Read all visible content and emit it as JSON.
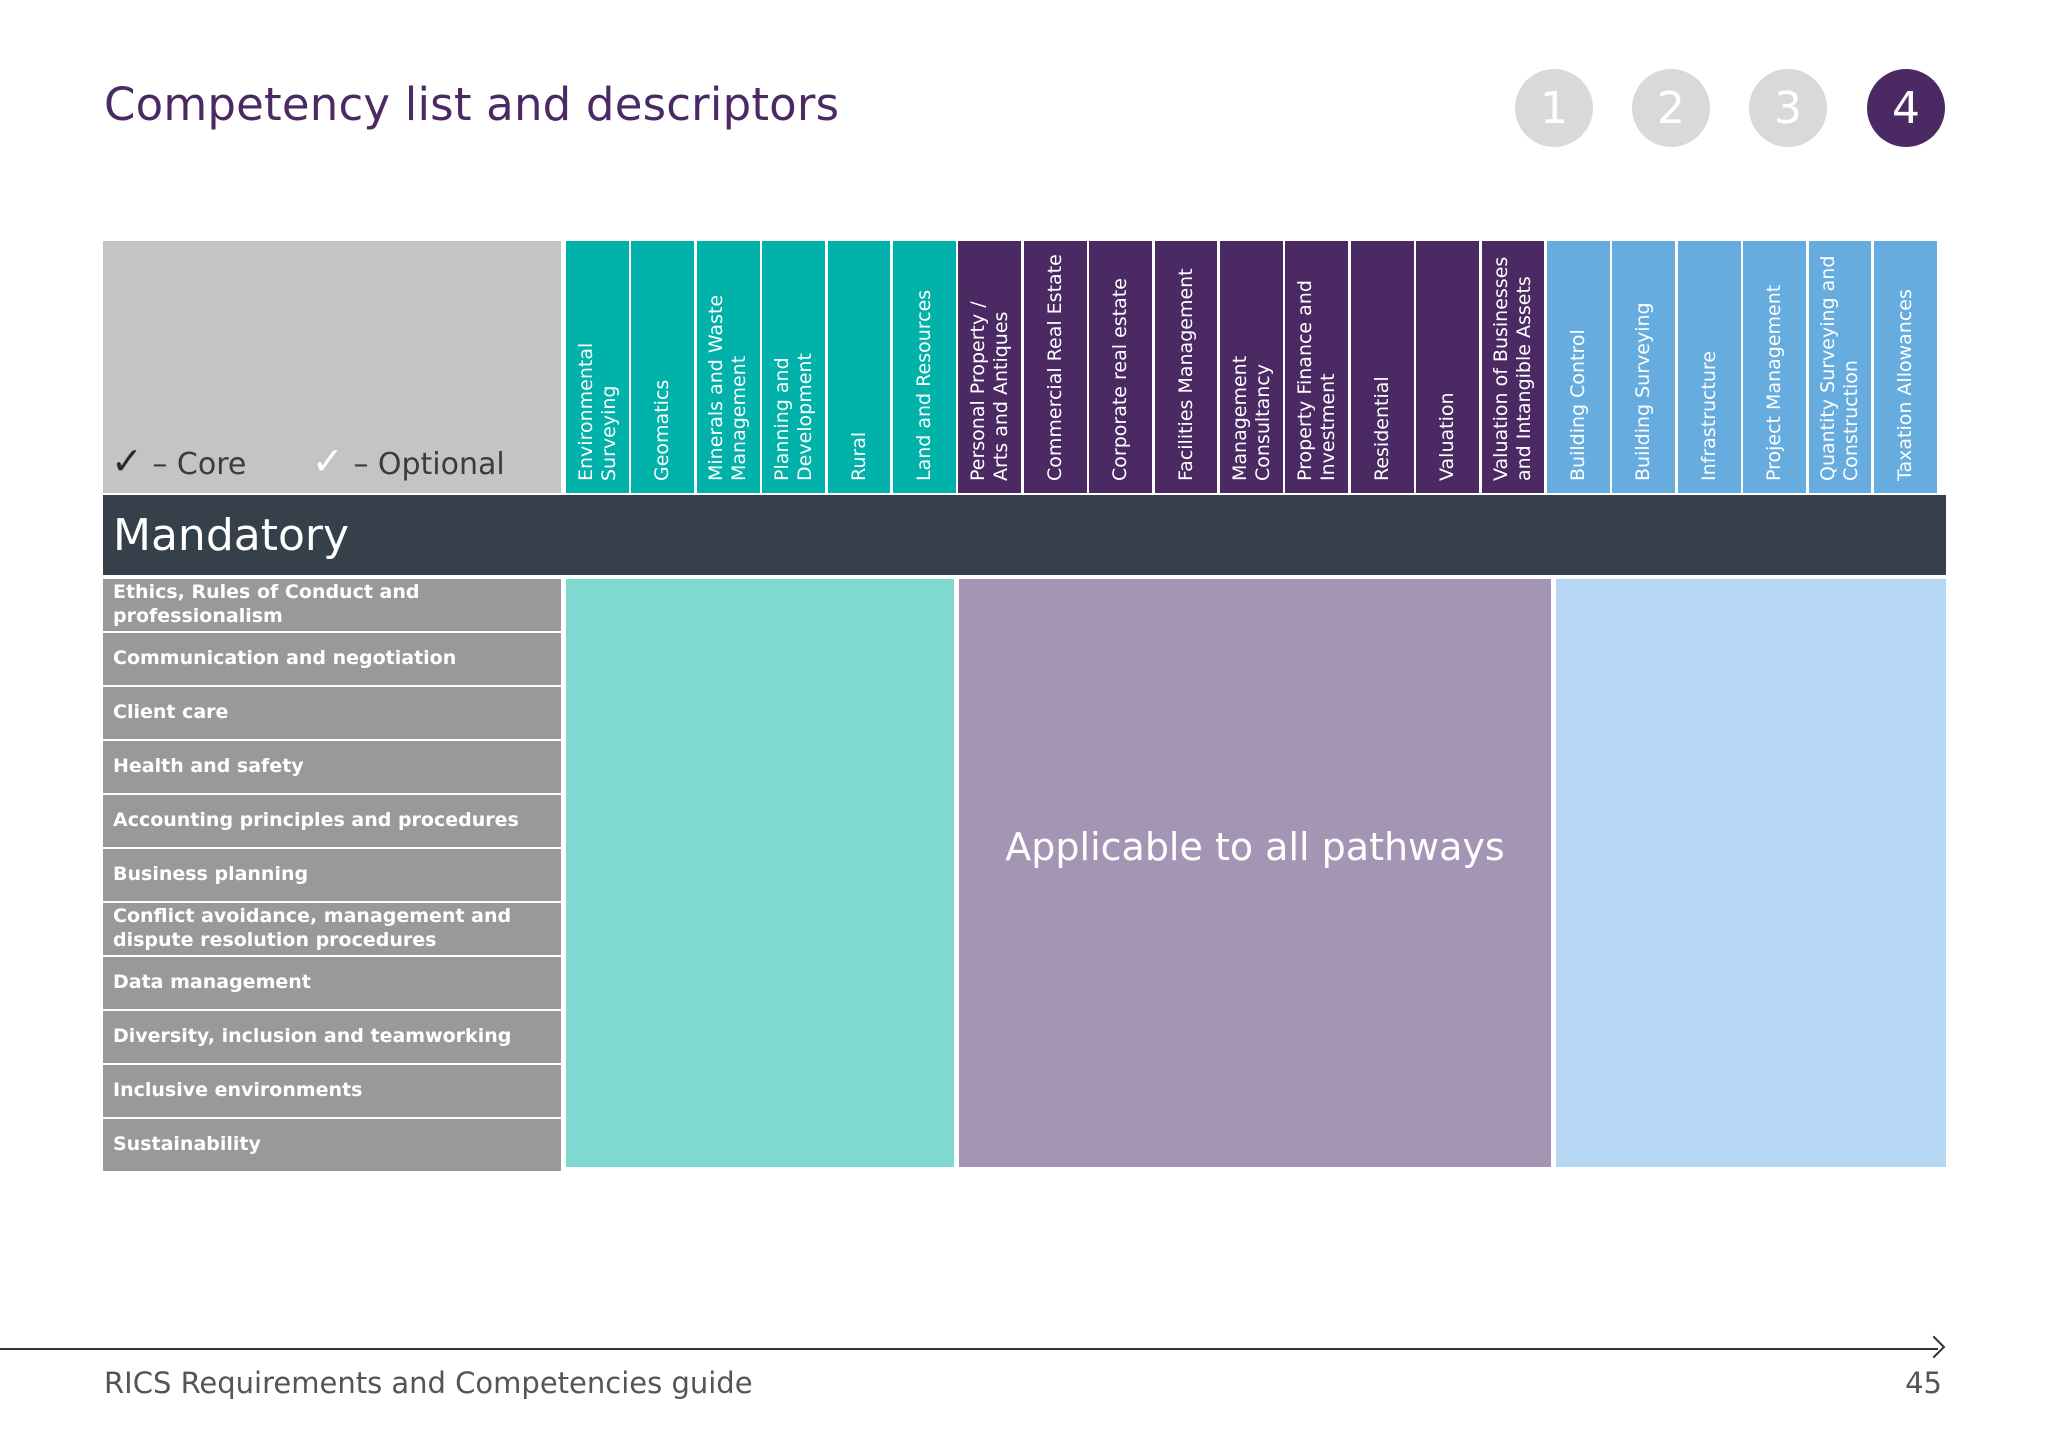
{
  "page": {
    "title": "Competency list and descriptors",
    "steps": [
      "1",
      "2",
      "3",
      "4"
    ],
    "active_step": "4"
  },
  "legend": {
    "core_symbol": "✓",
    "core_label": "– Core",
    "optional_symbol": "✓",
    "optional_label": "– Optional"
  },
  "pathways": [
    {
      "label": "Environmental\nSurveying",
      "group": "teal"
    },
    {
      "label": "Geomatics",
      "group": "teal"
    },
    {
      "label": "Minerals and Waste\nManagement",
      "group": "teal"
    },
    {
      "label": "Planning and\nDevelopment",
      "group": "teal"
    },
    {
      "label": "Rural",
      "group": "teal"
    },
    {
      "label": "Land and Resources",
      "group": "teal"
    },
    {
      "label": "Personal Property /\nArts and Antiques",
      "group": "purple"
    },
    {
      "label": "Commercial Real Estate",
      "group": "purple"
    },
    {
      "label": "Corporate real estate",
      "group": "purple"
    },
    {
      "label": "Facilities Management",
      "group": "purple"
    },
    {
      "label": "Management\nConsultancy",
      "group": "purple"
    },
    {
      "label": "Property Finance and\nInvestment",
      "group": "purple"
    },
    {
      "label": "Residential",
      "group": "purple"
    },
    {
      "label": "Valuation",
      "group": "purple"
    },
    {
      "label": "Valuation of Businesses\nand Intangible Assets",
      "group": "purple"
    },
    {
      "label": "Building Control",
      "group": "blue"
    },
    {
      "label": "Building Surveying",
      "group": "blue"
    },
    {
      "label": "Infrastructure",
      "group": "blue"
    },
    {
      "label": "Project Management",
      "group": "blue"
    },
    {
      "label": "Quantity Surveying and\nConstruction",
      "group": "blue"
    },
    {
      "label": "Taxation Allowances",
      "group": "blue"
    }
  ],
  "section": {
    "title": "Mandatory",
    "applicable_text": "Applicable to all pathways",
    "competencies": [
      "Ethics, Rules of Conduct and professionalism",
      "Communication and negotiation",
      "Client care",
      "Health and safety",
      "Accounting principles and procedures",
      "Business planning",
      "Conflict avoidance, management and\ndispute resolution procedures",
      "Data management",
      "Diversity, inclusion and teamworking",
      "Inclusive environments",
      "Sustainability"
    ]
  },
  "colors": {
    "teal": "#00b2a9",
    "purple": "#4b2a63",
    "blue": "#66acdf",
    "teal_light": "#80d9d1",
    "purple_light": "#a595b5",
    "blue_light": "#b5d7f3"
  },
  "footer": {
    "text": "RICS Requirements and Competencies guide",
    "page_number": "45"
  }
}
